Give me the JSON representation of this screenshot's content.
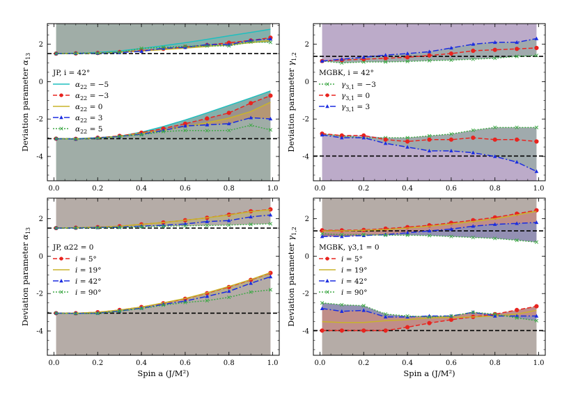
{
  "chart_data": [
    {
      "type": "line",
      "panel": "top-left",
      "ylabel_main": "Deviation parameter ",
      "ylabel_sym": "α",
      "ylabel_sub": "13",
      "xlabel": "",
      "xlim": [
        -0.03,
        1.03
      ],
      "ylim": [
        -5.3,
        3.1
      ],
      "xticks": [
        0.0,
        0.2,
        0.4,
        0.6,
        0.8,
        1.0
      ],
      "xtick_labels": [
        "0.0",
        "0.2",
        "0.4",
        "0.6",
        "0.8",
        "1.0"
      ],
      "yticks": [
        -4,
        -2,
        0,
        2
      ],
      "ytick_labels": [
        "-4",
        "-2",
        "0",
        "2"
      ],
      "reference_lines": [
        1.5,
        -3.05
      ],
      "fill_color": "#8f9f98",
      "legend_title": "JP, i = 42°",
      "legend_position": "left",
      "x": [
        0.01,
        0.1,
        0.2,
        0.3,
        0.4,
        0.5,
        0.6,
        0.7,
        0.8,
        0.9,
        0.99
      ],
      "series": [
        {
          "name": "α22 = −5",
          "sym": "α",
          "sub": "22",
          "rel": "=",
          "val": "−5",
          "color": "#1ebfbf",
          "dash": "",
          "marker": "none",
          "upper": [
            1.5,
            1.52,
            1.56,
            1.64,
            1.77,
            1.92,
            2.08,
            2.26,
            2.45,
            2.63,
            2.8
          ],
          "lower": [
            -3.05,
            -3.05,
            -3.0,
            -2.92,
            -2.7,
            -2.4,
            -2.05,
            -1.67,
            -1.27,
            -0.87,
            -0.5
          ]
        },
        {
          "name": "α22 = −3",
          "sym": "α",
          "sub": "22",
          "rel": "=",
          "val": "−3",
          "color": "#e8241f",
          "dash": "6,3",
          "marker": "circle",
          "upper": [
            1.5,
            1.51,
            1.53,
            1.58,
            1.66,
            1.75,
            1.85,
            1.96,
            2.08,
            2.2,
            2.35
          ],
          "lower": [
            -3.05,
            -3.06,
            -3.0,
            -2.9,
            -2.73,
            -2.51,
            -2.25,
            -1.97,
            -1.67,
            -1.15,
            -0.75
          ]
        },
        {
          "name": "α22 = 0",
          "sym": "α",
          "sub": "22",
          "rel": "=",
          "val": "0",
          "color": "#c8b42a",
          "dash": "",
          "marker": "none",
          "upper": [
            1.5,
            1.51,
            1.53,
            1.57,
            1.63,
            1.71,
            1.79,
            1.88,
            1.98,
            2.08,
            2.2
          ],
          "lower": [
            -3.05,
            -3.06,
            -3.02,
            -2.92,
            -2.77,
            -2.6,
            -2.4,
            -2.2,
            -1.95,
            -1.6,
            -1.1
          ]
        },
        {
          "name": "α22 = 3",
          "sym": "α",
          "sub": "22",
          "rel": "=",
          "val": "3",
          "color": "#1a2ce0",
          "dash": "8,3,2,3",
          "marker": "triangle",
          "upper": [
            1.5,
            1.51,
            1.52,
            1.55,
            1.62,
            1.78,
            1.83,
            1.98,
            1.98,
            2.2,
            2.28
          ],
          "lower": [
            -3.05,
            -3.07,
            -3.01,
            -2.93,
            -2.81,
            -2.61,
            -2.37,
            -2.31,
            -2.25,
            -1.93,
            -1.99
          ]
        },
        {
          "name": "α22 = 5",
          "sym": "α",
          "sub": "22",
          "rel": "=",
          "val": "5",
          "color": "#3fa847",
          "dash": "2,2",
          "marker": "x",
          "upper": [
            1.5,
            1.51,
            1.52,
            1.57,
            1.78,
            1.83,
            1.89,
            1.91,
            1.91,
            2.12,
            2.1
          ],
          "lower": [
            -3.05,
            -3.07,
            -3.02,
            -2.93,
            -2.84,
            -2.67,
            -2.61,
            -2.62,
            -2.61,
            -2.33,
            -2.58
          ]
        }
      ],
      "fill_between": [
        [
          0,
          2
        ],
        [
          1,
          3
        ],
        [
          2,
          3
        ]
      ]
    },
    {
      "type": "line",
      "panel": "top-right",
      "ylabel_main": "Deviation parameter ",
      "ylabel_sym": "γ",
      "ylabel_sub": "1,2",
      "xlabel": "",
      "xlim": [
        -0.03,
        1.03
      ],
      "ylim": [
        -5.3,
        3.1
      ],
      "xticks": [
        0.0,
        0.2,
        0.4,
        0.6,
        0.8,
        1.0
      ],
      "xtick_labels": [
        "0.0",
        "0.2",
        "0.4",
        "0.6",
        "0.8",
        "1.0"
      ],
      "yticks": [
        -4,
        -2,
        0,
        2
      ],
      "ytick_labels": [
        "-4",
        "-2",
        "0",
        "2"
      ],
      "reference_lines": [
        1.35,
        -3.98
      ],
      "fill_color": "#b09cc0",
      "legend_title": "MGBK, i = 42°",
      "legend_position": "left",
      "x": [
        0.01,
        0.1,
        0.2,
        0.3,
        0.4,
        0.5,
        0.6,
        0.7,
        0.8,
        0.9,
        0.99
      ],
      "series": [
        {
          "name": "γ3,1 = −3",
          "sym": "γ",
          "sub": "3,1",
          "rel": "=",
          "val": "−3",
          "color": "#3fa847",
          "dash": "2,2",
          "marker": "x",
          "upper": [
            1.1,
            1.0,
            1.05,
            1.05,
            1.08,
            1.12,
            1.15,
            1.2,
            1.25,
            1.35,
            1.4
          ],
          "lower": [
            -2.8,
            -2.9,
            -3.0,
            -3.0,
            -3.0,
            -2.9,
            -2.8,
            -2.6,
            -2.45,
            -2.45,
            -2.45
          ]
        },
        {
          "name": "γ3,1 = 0",
          "sym": "γ",
          "sub": "3,1",
          "rel": "=",
          "val": "0",
          "color": "#e8241f",
          "dash": "6,3",
          "marker": "circle",
          "upper": [
            1.1,
            1.15,
            1.2,
            1.25,
            1.3,
            1.4,
            1.5,
            1.65,
            1.7,
            1.75,
            1.8
          ],
          "lower": [
            -2.78,
            -2.88,
            -2.88,
            -3.1,
            -3.2,
            -3.1,
            -3.1,
            -3.0,
            -3.1,
            -3.1,
            -3.2
          ]
        },
        {
          "name": "γ3,1 = 3",
          "sym": "γ",
          "sub": "3,1",
          "rel": "=",
          "val": "3",
          "color": "#1a2ce0",
          "dash": "8,3,2,3",
          "marker": "triangle",
          "upper": [
            1.1,
            1.2,
            1.3,
            1.42,
            1.5,
            1.6,
            1.8,
            2.0,
            2.1,
            2.1,
            2.3
          ],
          "lower": [
            -2.85,
            -3.0,
            -3.0,
            -3.3,
            -3.5,
            -3.7,
            -3.7,
            -3.8,
            -4.0,
            -4.3,
            -4.8
          ]
        }
      ],
      "fill_between": [
        [
          0,
          2
        ]
      ]
    },
    {
      "type": "line",
      "panel": "bottom-left",
      "ylabel_main": "Deviation parameter ",
      "ylabel_sym": "α",
      "ylabel_sub": "13",
      "xlabel": "Spin a (J/M²)",
      "xlim": [
        -0.03,
        1.03
      ],
      "ylim": [
        -5.3,
        3.1
      ],
      "xticks": [
        0.0,
        0.2,
        0.4,
        0.6,
        0.8,
        1.0
      ],
      "xtick_labels": [
        "0.0",
        "0.2",
        "0.4",
        "0.6",
        "0.8",
        "1.0"
      ],
      "yticks": [
        -4,
        -2,
        0,
        2
      ],
      "ytick_labels": [
        "-4",
        "-2",
        "0",
        "2"
      ],
      "reference_lines": [
        1.5,
        -3.05
      ],
      "fill_color": "#a89e98",
      "legend_title": "JP, α22 = 0",
      "legend_position": "left",
      "x": [
        0.01,
        0.1,
        0.2,
        0.3,
        0.4,
        0.5,
        0.6,
        0.7,
        0.8,
        0.9,
        0.99
      ],
      "series": [
        {
          "name": "i = 5°",
          "sym": "i",
          "sub": "",
          "rel": "=",
          "val": "5°",
          "color": "#e8241f",
          "dash": "6,3",
          "marker": "circle",
          "upper": [
            1.5,
            1.52,
            1.55,
            1.6,
            1.7,
            1.8,
            1.92,
            2.05,
            2.22,
            2.4,
            2.5
          ],
          "lower": [
            -3.05,
            -3.05,
            -3.0,
            -2.88,
            -2.72,
            -2.52,
            -2.28,
            -1.98,
            -1.65,
            -1.27,
            -0.9
          ]
        },
        {
          "name": "i = 19°",
          "sym": "i",
          "sub": "",
          "rel": "=",
          "val": "19°",
          "color": "#c8b42a",
          "dash": "",
          "marker": "none",
          "upper": [
            1.5,
            1.52,
            1.55,
            1.6,
            1.7,
            1.8,
            1.92,
            2.05,
            2.2,
            2.38,
            2.48
          ],
          "lower": [
            -3.05,
            -3.05,
            -3.0,
            -2.88,
            -2.72,
            -2.5,
            -2.26,
            -1.96,
            -1.62,
            -1.25,
            -0.88
          ]
        },
        {
          "name": "i = 42°",
          "sym": "i",
          "sub": "",
          "rel": "=",
          "val": "42°",
          "color": "#1a2ce0",
          "dash": "8,3,2,3",
          "marker": "triangle",
          "upper": [
            1.5,
            1.51,
            1.53,
            1.55,
            1.6,
            1.65,
            1.72,
            1.85,
            1.9,
            2.1,
            2.2
          ],
          "lower": [
            -3.05,
            -3.06,
            -3.05,
            -2.93,
            -2.78,
            -2.58,
            -2.4,
            -2.15,
            -1.88,
            -1.45,
            -1.1
          ]
        },
        {
          "name": "i = 90°",
          "sym": "i",
          "sub": "",
          "rel": "=",
          "val": "90°",
          "color": "#3fa847",
          "dash": "2,2",
          "marker": "x",
          "upper": [
            1.5,
            1.51,
            1.52,
            1.53,
            1.57,
            1.6,
            1.62,
            1.64,
            1.66,
            1.7,
            1.73
          ],
          "lower": [
            -3.05,
            -3.07,
            -3.06,
            -2.94,
            -2.8,
            -2.62,
            -2.48,
            -2.38,
            -2.2,
            -1.92,
            -1.8
          ]
        }
      ],
      "fill_between": [
        [
          1,
          2
        ]
      ]
    },
    {
      "type": "line",
      "panel": "bottom-right",
      "ylabel_main": "Deviation parameter ",
      "ylabel_sym": "γ",
      "ylabel_sub": "1,2",
      "xlabel": "Spin a (J/M²)",
      "xlim": [
        -0.03,
        1.03
      ],
      "ylim": [
        -5.3,
        3.1
      ],
      "xticks": [
        0.0,
        0.2,
        0.4,
        0.6,
        0.8,
        1.0
      ],
      "xtick_labels": [
        "0.0",
        "0.2",
        "0.4",
        "0.6",
        "0.8",
        "1.0"
      ],
      "yticks": [
        -4,
        -2,
        0,
        2
      ],
      "ytick_labels": [
        "-4",
        "-2",
        "0",
        "2"
      ],
      "reference_lines": [
        1.35,
        -3.98
      ],
      "fill_color": "#a89e98",
      "legend_title": "MGBK, γ3,1 = 0",
      "legend_position": "left",
      "x": [
        0.01,
        0.1,
        0.2,
        0.3,
        0.4,
        0.5,
        0.6,
        0.7,
        0.8,
        0.9,
        0.99
      ],
      "series": [
        {
          "name": "i = 5°",
          "sym": "i",
          "sub": "",
          "rel": "=",
          "val": "5°",
          "color": "#e8241f",
          "dash": "6,3",
          "marker": "circle",
          "upper": [
            1.38,
            1.38,
            1.4,
            1.47,
            1.55,
            1.65,
            1.78,
            1.92,
            2.07,
            2.27,
            2.45
          ],
          "lower": [
            -3.98,
            -3.98,
            -3.98,
            -3.98,
            -3.8,
            -3.58,
            -3.4,
            -3.25,
            -3.1,
            -2.88,
            -2.68
          ]
        },
        {
          "name": "i = 19°",
          "sym": "i",
          "sub": "",
          "rel": "=",
          "val": "19°",
          "color": "#c8b42a",
          "dash": "",
          "marker": "none",
          "upper": [
            1.35,
            1.35,
            1.38,
            1.42,
            1.5,
            1.6,
            1.72,
            1.85,
            2.0,
            2.2,
            2.4
          ],
          "lower": [
            -3.5,
            -3.55,
            -3.55,
            -3.45,
            -3.4,
            -3.3,
            -3.28,
            -3.25,
            -3.2,
            -3.1,
            -2.9
          ]
        },
        {
          "name": "i = 42°",
          "sym": "i",
          "sub": "",
          "rel": "=",
          "val": "42°",
          "color": "#1a2ce0",
          "dash": "8,3,2,3",
          "marker": "triangle",
          "upper": [
            1.05,
            1.05,
            1.1,
            1.15,
            1.25,
            1.35,
            1.45,
            1.6,
            1.7,
            1.75,
            1.8
          ],
          "lower": [
            -2.8,
            -2.95,
            -2.9,
            -3.25,
            -3.25,
            -3.2,
            -3.2,
            -3.0,
            -3.2,
            -3.2,
            -3.2
          ]
        },
        {
          "name": "i = 90°",
          "sym": "i",
          "sub": "",
          "rel": "=",
          "val": "90°",
          "color": "#3fa847",
          "dash": "2,2",
          "marker": "x",
          "upper": [
            1.2,
            1.15,
            1.15,
            1.12,
            1.12,
            1.1,
            1.05,
            1.0,
            0.95,
            0.85,
            0.75
          ],
          "lower": [
            -2.5,
            -2.6,
            -2.65,
            -3.1,
            -3.2,
            -3.25,
            -3.2,
            -3.0,
            -3.1,
            -3.3,
            -3.45
          ]
        }
      ],
      "fill_between": [
        [
          2,
          3
        ],
        [
          0,
          2
        ]
      ]
    }
  ]
}
